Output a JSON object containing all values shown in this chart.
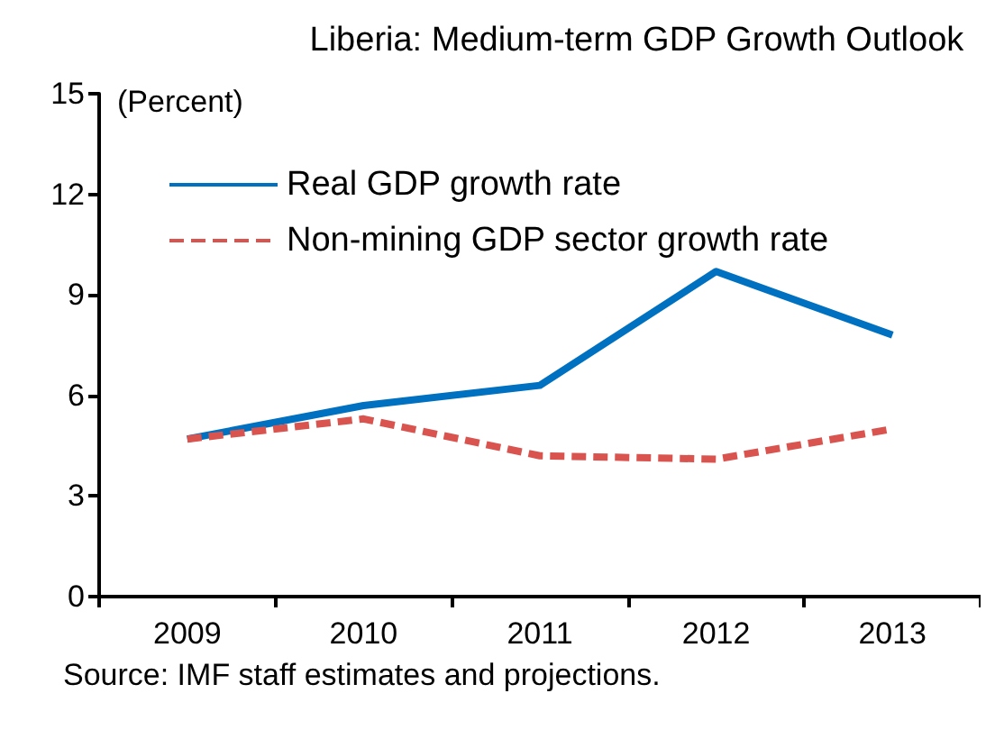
{
  "chart_data": {
    "type": "line",
    "title": "Liberia: Medium-term GDP Growth Outlook",
    "ylabel": "(Percent)",
    "categories": [
      "2009",
      "2010",
      "2011",
      "2012",
      "2013"
    ],
    "series": [
      {
        "name": "Real GDP growth rate",
        "color": "#0070c0",
        "values": [
          4.7,
          5.7,
          6.3,
          9.7,
          7.8
        ],
        "line_style": "solid"
      },
      {
        "name": "Non-mining GDP sector growth rate",
        "color": "#d9534f",
        "values": [
          4.7,
          5.3,
          4.2,
          4.1,
          5.0
        ],
        "line_style": "dashed"
      }
    ],
    "ylim": [
      0,
      15
    ],
    "yticks": [
      0,
      3,
      6,
      9,
      12,
      15
    ],
    "grid": false,
    "legend": "top left",
    "marker": "none",
    "annotations": [
      "Source: IMF staff estimates and projections."
    ]
  }
}
